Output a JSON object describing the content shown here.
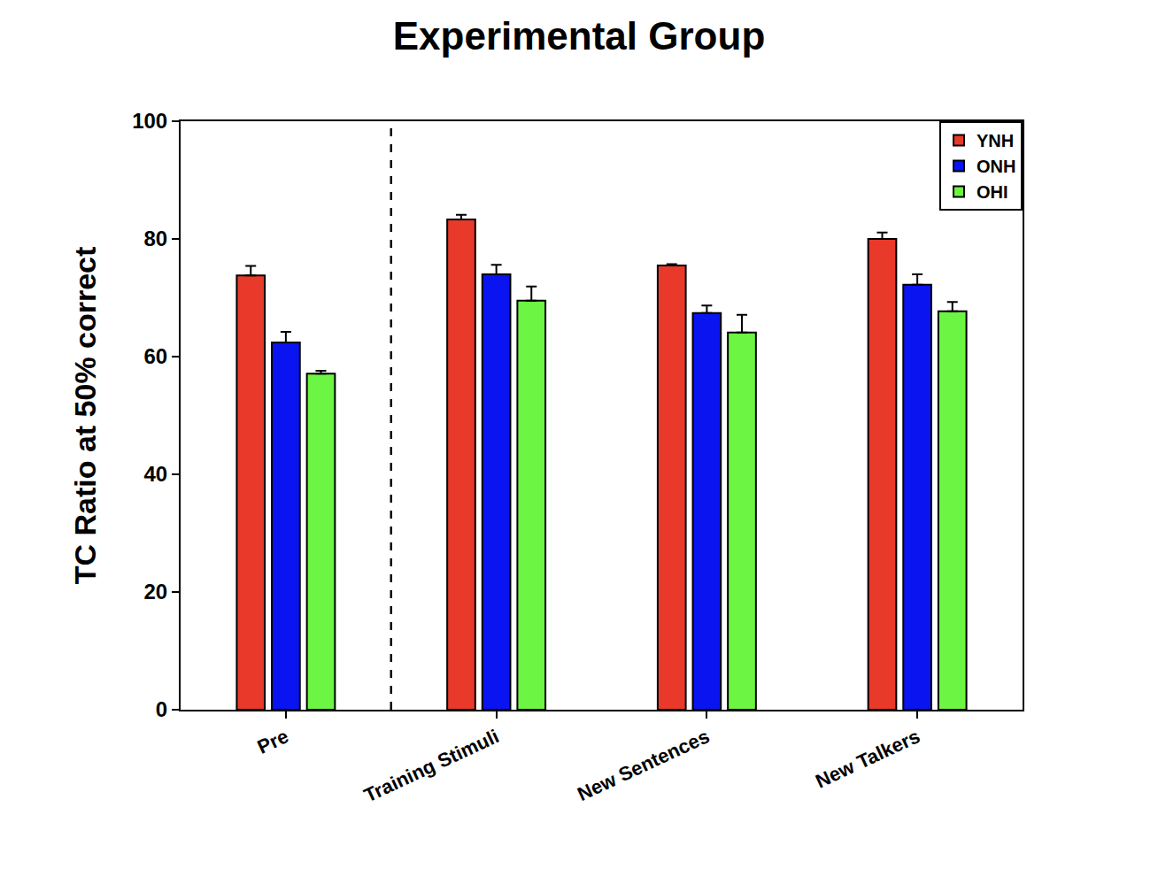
{
  "chart_data": {
    "type": "bar",
    "title": "Experimental Group",
    "y_label": "TC Ratio at 50% correct",
    "categories": [
      "Pre",
      "Training Stimuli",
      "New Sentences",
      "New Talkers"
    ],
    "series": [
      {
        "name": "YNH",
        "color": "#e8392a",
        "values": [
          73.8,
          83.3,
          75.5,
          80.0
        ],
        "errors": [
          1.6,
          0.8,
          0.2,
          1.1
        ]
      },
      {
        "name": "ONH",
        "color": "#0a14f0",
        "values": [
          62.4,
          74.0,
          67.4,
          72.2
        ],
        "errors": [
          1.8,
          1.6,
          1.3,
          1.8
        ]
      },
      {
        "name": "OHI",
        "color": "#6cf542",
        "values": [
          57.1,
          69.5,
          64.1,
          67.7
        ],
        "errors": [
          0.5,
          2.4,
          3.0,
          1.6
        ]
      }
    ],
    "ylim": [
      0,
      100
    ],
    "yticks": [
      0,
      20,
      40,
      60,
      80,
      100
    ],
    "grid": false,
    "legend": "top-right"
  }
}
